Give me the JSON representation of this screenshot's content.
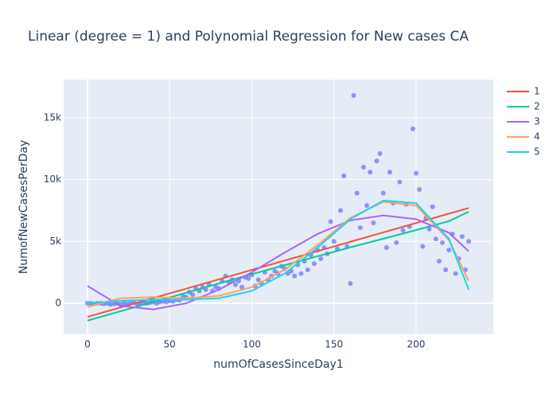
{
  "chart_data": {
    "type": "scatter",
    "title": "Linear (degree = 1) and Polynomial Regression for New cases CA",
    "x_label": "numOfCasesSinceDay1",
    "y_label": "NumofNewCasesPerDay",
    "xlim": [
      -14.5,
      247
    ],
    "ylim": [
      -2510,
      18080
    ],
    "xticks": [
      0,
      50,
      100,
      150,
      200
    ],
    "yticks": [
      0,
      {
        "value": 5000,
        "label": "5k"
      },
      {
        "value": 10000,
        "label": "10k"
      },
      {
        "value": 15000,
        "label": "15k"
      }
    ],
    "grid": true,
    "legend": "right",
    "background": "#e5ecf6",
    "series": [
      {
        "mode": "markers",
        "color": "#636efa",
        "x": [
          0,
          2,
          4,
          6,
          8,
          10,
          12,
          14,
          16,
          18,
          20,
          22,
          24,
          26,
          28,
          30,
          32,
          34,
          36,
          38,
          40,
          42,
          44,
          46,
          48,
          50,
          52,
          54,
          56,
          58,
          60,
          62,
          64,
          66,
          68,
          70,
          72,
          74,
          76,
          78,
          80,
          82,
          84,
          86,
          88,
          90,
          92,
          94,
          96,
          98,
          100,
          102,
          104,
          106,
          108,
          110,
          112,
          114,
          116,
          118,
          120,
          122,
          124,
          126,
          128,
          130,
          132,
          134,
          136,
          138,
          140,
          142,
          144,
          146,
          148,
          150,
          152,
          154,
          156,
          158,
          160,
          162,
          164,
          166,
          168,
          170,
          172,
          174,
          176,
          178,
          180,
          182,
          184,
          186,
          188,
          190,
          192,
          194,
          196,
          198,
          200,
          202,
          204,
          206,
          208,
          210,
          212,
          214,
          216,
          218,
          220,
          222,
          224,
          226,
          228,
          230,
          232
        ],
        "values": [
          0,
          0,
          -50,
          0,
          0,
          -50,
          0,
          -100,
          -50,
          0,
          -100,
          0,
          -50,
          0,
          50,
          -50,
          0,
          100,
          0,
          50,
          100,
          0,
          100,
          150,
          100,
          200,
          150,
          300,
          250,
          600,
          500,
          900,
          700,
          1200,
          1000,
          1300,
          1100,
          1500,
          1000,
          1300,
          1200,
          1800,
          2200,
          1700,
          1900,
          1500,
          1800,
          1300,
          2100,
          2000,
          2300,
          1400,
          1900,
          1600,
          2500,
          1900,
          2200,
          2600,
          2400,
          3000,
          2800,
          2400,
          2600,
          2200,
          3100,
          2400,
          3400,
          2700,
          3900,
          3200,
          4300,
          3600,
          4500,
          4000,
          6600,
          5000,
          4400,
          7500,
          10300,
          4600,
          1600,
          16800,
          8900,
          6100,
          11000,
          7900,
          10600,
          6500,
          11500,
          12100,
          8900,
          4500,
          10600,
          8100,
          4900,
          9800,
          5900,
          8000,
          6200,
          14100,
          10500,
          9200,
          4600,
          6900,
          6000,
          7800,
          5200,
          3400,
          4900,
          2700,
          4300,
          5600,
          2400,
          3600,
          5400,
          2700,
          5000
        ]
      },
      {
        "mode": "lines",
        "name": "1",
        "color": "#EF553B",
        "x": [
          0,
          20,
          40,
          60,
          80,
          100,
          120,
          140,
          160,
          180,
          200,
          220,
          232
        ],
        "values": [
          -1100,
          -342,
          417,
          1176,
          1934,
          2693,
          3452,
          4210,
          4969,
          5728,
          6486,
          7245,
          7700
        ]
      },
      {
        "mode": "lines",
        "name": "2",
        "color": "#00cc96",
        "x": [
          0,
          20,
          40,
          60,
          80,
          100,
          120,
          140,
          160,
          180,
          200,
          220,
          232
        ],
        "values": [
          -1400,
          -650,
          100,
          850,
          1600,
          2350,
          3080,
          3800,
          4520,
          5220,
          5920,
          6640,
          7400
        ]
      },
      {
        "mode": "lines",
        "name": "3",
        "color": "#ab63fa",
        "x": [
          0,
          20,
          40,
          60,
          80,
          100,
          120,
          140,
          160,
          180,
          200,
          220,
          232
        ],
        "values": [
          1400,
          -200,
          -500,
          0,
          1100,
          2500,
          4100,
          5600,
          6700,
          7100,
          6800,
          5700,
          4200
        ]
      },
      {
        "mode": "lines",
        "name": "4",
        "color": "#FFA15A",
        "x": [
          0,
          20,
          40,
          60,
          80,
          100,
          120,
          140,
          160,
          180,
          200,
          220,
          232
        ],
        "values": [
          -300,
          400,
          500,
          400,
          600,
          1300,
          2700,
          4700,
          6900,
          8200,
          7900,
          5100,
          1800
        ]
      },
      {
        "mode": "lines",
        "name": "5",
        "color": "#19d3f3",
        "x": [
          0,
          20,
          40,
          60,
          80,
          100,
          120,
          140,
          160,
          180,
          200,
          220,
          232
        ],
        "values": [
          0,
          200,
          300,
          300,
          400,
          1000,
          2400,
          4500,
          6800,
          8300,
          8100,
          5200,
          1100
        ]
      }
    ]
  }
}
